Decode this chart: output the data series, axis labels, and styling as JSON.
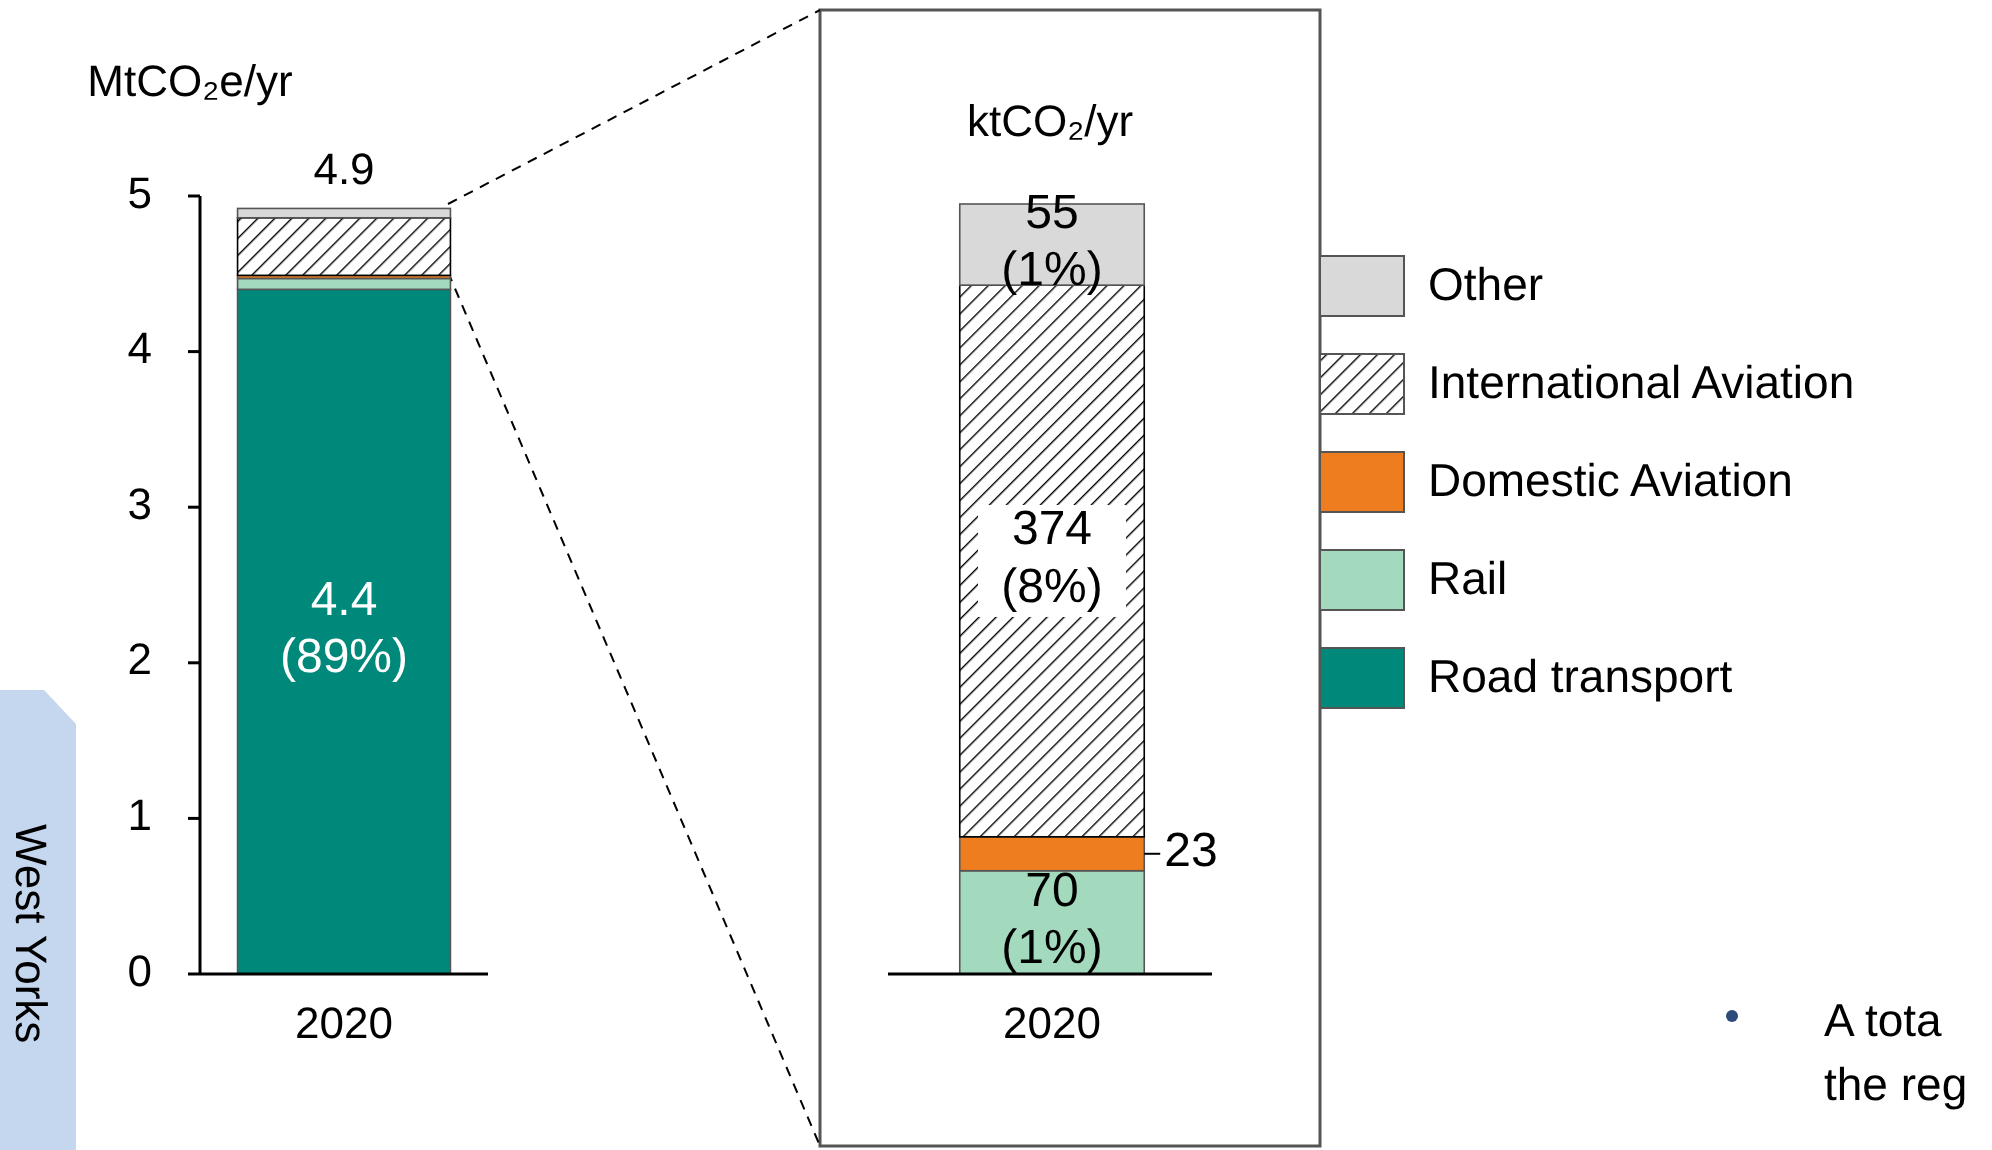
{
  "chart_data": [
    {
      "type": "bar",
      "stacked": true,
      "ylabel": "MtCO₂e/yr",
      "categories": [
        "2020"
      ],
      "ylim": [
        0,
        5
      ],
      "yticks": [
        0,
        1,
        2,
        3,
        4,
        5
      ],
      "grid": false,
      "legend": "right",
      "totals": [
        "4.9"
      ],
      "annotations": [
        "West Yorks",
        "A tota",
        "the reg"
      ],
      "series": [
        {
          "name": "Road transport",
          "color": "#00897b",
          "values": [
            4.4
          ],
          "value_labels": [
            "4.4\n(89%)"
          ]
        },
        {
          "name": "Rail",
          "color": "#a3d9bc",
          "values": [
            0.07
          ]
        },
        {
          "name": "Domestic Aviation",
          "color": "#ed7d1e",
          "values": [
            0.02
          ]
        },
        {
          "name": "International Aviation",
          "color": "#000000",
          "values": [
            0.37
          ]
        },
        {
          "name": "Other",
          "color": "#d9d9d9",
          "values": [
            0.06
          ]
        }
      ]
    },
    {
      "type": "bar",
      "stacked": true,
      "ylabel": "ktCO₂/yr",
      "categories": [
        "2020"
      ],
      "series": [
        {
          "color": "#a3d9bc",
          "values": [
            70
          ],
          "value_labels": [
            "70\n(1%)"
          ]
        },
        {
          "color": "#ed7d1e",
          "values": [
            23
          ],
          "value_labels": [
            "23"
          ]
        },
        {
          "color": "#000000",
          "values": [
            374
          ],
          "value_labels": [
            "374\n(8%)"
          ]
        },
        {
          "color": "#d9d9d9",
          "values": [
            55
          ],
          "value_labels": [
            "55\n(1%)"
          ]
        }
      ]
    }
  ]
}
